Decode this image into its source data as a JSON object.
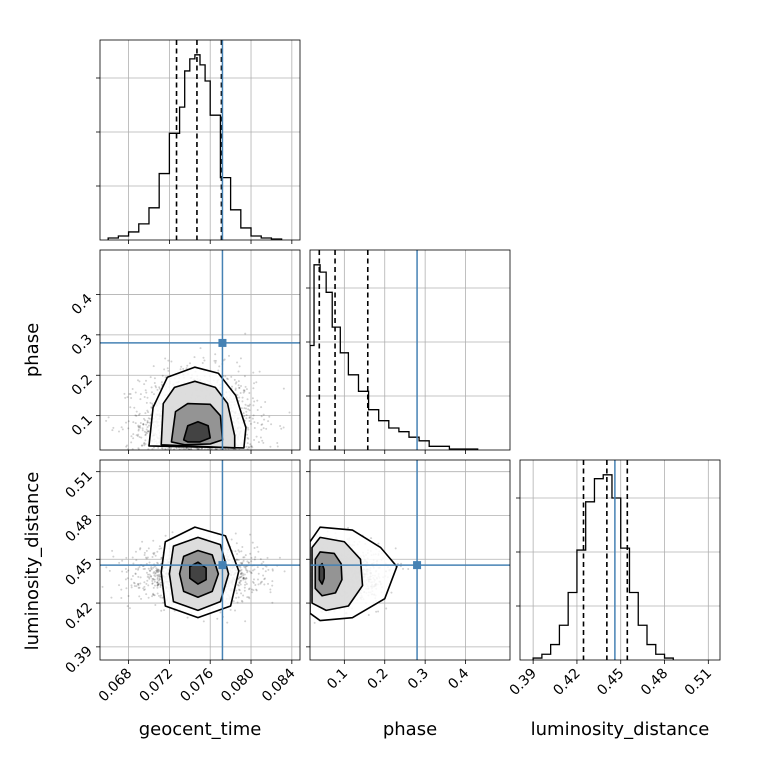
{
  "chart_data": {
    "type": "corner",
    "title": "",
    "parameters": [
      "geocent_time",
      "phase",
      "luminosity_distance"
    ],
    "truth": {
      "geocent_time": 0.0772,
      "phase": 0.28,
      "luminosity_distance": 0.446
    },
    "truth_color": "#4682b4",
    "grid": true,
    "axes": {
      "geocent_time": {
        "range": [
          0.0652,
          0.0848
        ],
        "ticks": [
          "0.068",
          "0.072",
          "0.076",
          "0.080",
          "0.084"
        ]
      },
      "phase": {
        "range": [
          0.015,
          0.51
        ],
        "ticks": [
          "0.1",
          "0.2",
          "0.3",
          "0.4"
        ]
      },
      "luminosity_distance": {
        "range": [
          0.381,
          0.518
        ],
        "ticks": [
          "0.39",
          "0.42",
          "0.45",
          "0.48",
          "0.51"
        ]
      }
    },
    "histograms": [
      {
        "parameter": "geocent_time",
        "bin_edges": [
          0.066,
          0.067,
          0.068,
          0.069,
          0.07,
          0.071,
          0.072,
          0.073,
          0.0735,
          0.074,
          0.0745,
          0.075,
          0.0755,
          0.076,
          0.077,
          0.078,
          0.079,
          0.08,
          0.081,
          0.082,
          0.083
        ],
        "counts": [
          1,
          2,
          4,
          8,
          16,
          33,
          53,
          66,
          84,
          90,
          92,
          87,
          79,
          62,
          31,
          15,
          6,
          2,
          1,
          0.5
        ],
        "quantiles": [
          0.0727,
          0.0747,
          0.0771
        ]
      },
      {
        "parameter": "phase",
        "bin_edges": [
          0.015,
          0.025,
          0.04,
          0.055,
          0.07,
          0.09,
          0.11,
          0.135,
          0.16,
          0.185,
          0.21,
          0.235,
          0.26,
          0.285,
          0.31,
          0.36,
          0.43
        ],
        "counts": [
          57,
          101,
          97,
          86,
          67,
          53,
          41,
          32,
          22,
          16,
          12,
          10,
          7,
          5,
          2,
          0.5
        ],
        "quantiles": [
          0.038,
          0.077,
          0.158
        ]
      },
      {
        "parameter": "luminosity_distance",
        "bin_edges": [
          0.39,
          0.396,
          0.402,
          0.408,
          0.414,
          0.42,
          0.426,
          0.432,
          0.438,
          0.444,
          0.45,
          0.456,
          0.462,
          0.468,
          0.474,
          0.48,
          0.486
        ],
        "counts": [
          1,
          3,
          8,
          18,
          35,
          57,
          82,
          94,
          96,
          84,
          58,
          35,
          18,
          8,
          3,
          1
        ],
        "quantiles": [
          0.4245,
          0.4405,
          0.4545
        ]
      }
    ],
    "scatter_2d": [
      {
        "x": "geocent_time",
        "y": "phase",
        "center": [
          0.0748,
          0.065
        ],
        "spread": [
          0.0028,
          0.05
        ],
        "contours": [
          [
            [
              0.0734,
              0.04
            ],
            [
              0.0738,
              0.075
            ],
            [
              0.0748,
              0.085
            ],
            [
              0.0758,
              0.075
            ],
            [
              0.076,
              0.045
            ],
            [
              0.075,
              0.035
            ],
            [
              0.0738,
              0.035
            ]
          ],
          [
            [
              0.0722,
              0.035
            ],
            [
              0.0726,
              0.11
            ],
            [
              0.0738,
              0.13
            ],
            [
              0.076,
              0.128
            ],
            [
              0.077,
              0.1
            ],
            [
              0.0772,
              0.04
            ],
            [
              0.076,
              0.03
            ],
            [
              0.0735,
              0.028
            ]
          ],
          [
            [
              0.0712,
              0.028
            ],
            [
              0.0714,
              0.13
            ],
            [
              0.0725,
              0.17
            ],
            [
              0.0745,
              0.185
            ],
            [
              0.0765,
              0.17
            ],
            [
              0.0777,
              0.13
            ],
            [
              0.0784,
              0.05
            ],
            [
              0.0784,
              0.02
            ]
          ],
          [
            [
              0.07,
              0.025
            ],
            [
              0.0704,
              0.12
            ],
            [
              0.0718,
              0.195
            ],
            [
              0.0745,
              0.22
            ],
            [
              0.0768,
              0.205
            ],
            [
              0.0785,
              0.15
            ],
            [
              0.0795,
              0.07
            ],
            [
              0.0793,
              0.02
            ]
          ]
        ]
      },
      {
        "x": "geocent_time",
        "y": "luminosity_distance",
        "center": [
          0.0748,
          0.44
        ],
        "spread": [
          0.0028,
          0.0095
        ],
        "contours": [
          [
            [
              0.074,
              0.445
            ],
            [
              0.0748,
              0.448
            ],
            [
              0.0756,
              0.444
            ],
            [
              0.0756,
              0.436
            ],
            [
              0.0748,
              0.433
            ],
            [
              0.074,
              0.437
            ]
          ],
          [
            [
              0.073,
              0.44
            ],
            [
              0.0734,
              0.452
            ],
            [
              0.0748,
              0.456
            ],
            [
              0.0762,
              0.453
            ],
            [
              0.0768,
              0.44
            ],
            [
              0.0762,
              0.428
            ],
            [
              0.0748,
              0.424
            ],
            [
              0.0734,
              0.428
            ]
          ],
          [
            [
              0.072,
              0.44
            ],
            [
              0.0724,
              0.459
            ],
            [
              0.0748,
              0.465
            ],
            [
              0.077,
              0.46
            ],
            [
              0.0778,
              0.44
            ],
            [
              0.077,
              0.421
            ],
            [
              0.0748,
              0.415
            ],
            [
              0.0724,
              0.421
            ]
          ],
          [
            [
              0.0712,
              0.441
            ],
            [
              0.0716,
              0.462
            ],
            [
              0.0745,
              0.472
            ],
            [
              0.0775,
              0.466
            ],
            [
              0.0788,
              0.442
            ],
            [
              0.078,
              0.418
            ],
            [
              0.0748,
              0.41
            ],
            [
              0.0716,
              0.418
            ]
          ]
        ]
      },
      {
        "x": "phase",
        "y": "luminosity_distance",
        "center": [
          0.055,
          0.44
        ],
        "spread": [
          0.045,
          0.0095
        ],
        "contours": [
          [
            [
              0.038,
              0.445
            ],
            [
              0.045,
              0.447
            ],
            [
              0.05,
              0.443
            ],
            [
              0.05,
              0.437
            ],
            [
              0.045,
              0.433
            ],
            [
              0.038,
              0.436
            ]
          ],
          [
            [
              0.028,
              0.45
            ],
            [
              0.04,
              0.455
            ],
            [
              0.075,
              0.454
            ],
            [
              0.092,
              0.447
            ],
            [
              0.094,
              0.436
            ],
            [
              0.078,
              0.427
            ],
            [
              0.045,
              0.425
            ],
            [
              0.028,
              0.43
            ]
          ],
          [
            [
              0.02,
              0.458
            ],
            [
              0.04,
              0.465
            ],
            [
              0.1,
              0.462
            ],
            [
              0.14,
              0.45
            ],
            [
              0.145,
              0.432
            ],
            [
              0.11,
              0.418
            ],
            [
              0.055,
              0.415
            ],
            [
              0.02,
              0.42
            ]
          ],
          [
            [
              0.015,
              0.462
            ],
            [
              0.04,
              0.472
            ],
            [
              0.12,
              0.47
            ],
            [
              0.19,
              0.458
            ],
            [
              0.23,
              0.445
            ],
            [
              0.2,
              0.423
            ],
            [
              0.12,
              0.41
            ],
            [
              0.04,
              0.408
            ],
            [
              0.015,
              0.413
            ]
          ]
        ]
      }
    ],
    "panel_axis_labels": {
      "phase": "phase",
      "luminosity_distance": "luminosity_distance",
      "geocent_time": "geocent_time"
    }
  }
}
